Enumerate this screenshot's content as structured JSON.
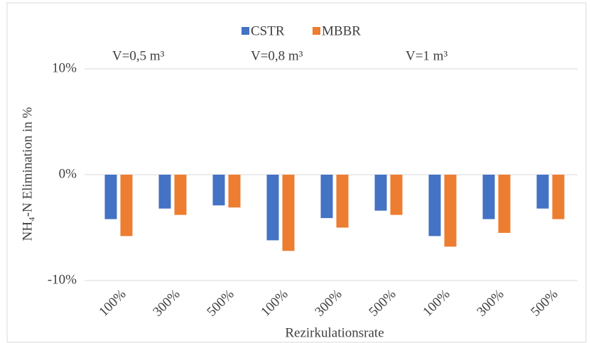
{
  "chart_data": {
    "type": "bar",
    "y_axis_label": "NH₄-N Elimination in %",
    "x_axis_label": "Rezirkulationsrate",
    "annotations": [
      "V=0,5 m³",
      "V=0,8 m³",
      "V=1 m³"
    ],
    "categories": [
      "100%",
      "300%",
      "500%",
      "100%",
      "300%",
      "500%",
      "100%",
      "300%",
      "500%"
    ],
    "series": [
      {
        "name": "CSTR",
        "color": "#4472c4",
        "values": [
          -4.2,
          -3.2,
          -2.9,
          -6.2,
          -4.1,
          -3.4,
          -5.8,
          -4.2,
          -3.2
        ]
      },
      {
        "name": "MBBR",
        "color": "#ed7d31",
        "values": [
          -5.8,
          -3.8,
          -3.1,
          -7.2,
          -5.0,
          -3.8,
          -6.8,
          -5.5,
          -4.2
        ]
      }
    ],
    "ylim": [
      -10,
      10
    ],
    "yticks": [
      {
        "value": 10,
        "label": "10%"
      },
      {
        "value": 0,
        "label": "0%"
      },
      {
        "value": -10,
        "label": "-10%"
      }
    ],
    "grid": true,
    "legend": "top"
  }
}
